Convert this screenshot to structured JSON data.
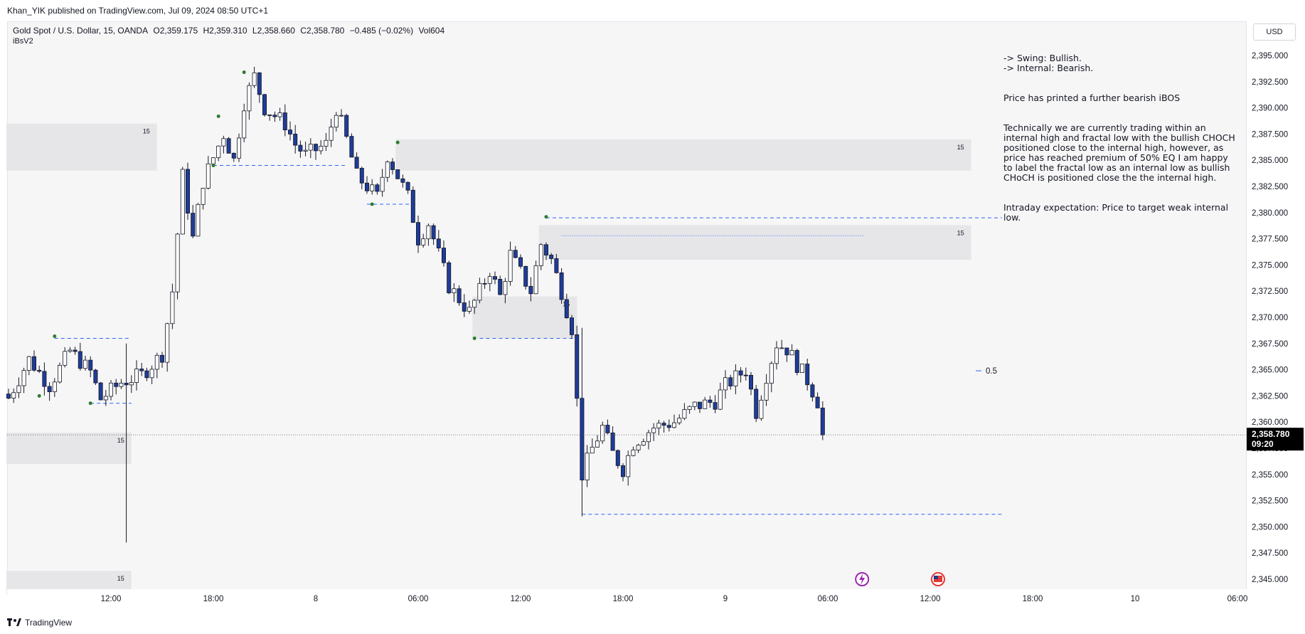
{
  "header": {
    "published": "Khan_YIK published on TradingView.com, Jul 09, 2024 08:50 UTC+1",
    "symbol": "Gold Spot / U.S. Dollar, 15, OANDA",
    "open": "O2,359.175",
    "high": "H2,359.310",
    "low": "L2,358.660",
    "close": "C2,358.780",
    "change": "−0.485 (−0.02%)",
    "volume": "Vol604",
    "indicator": "iBsV2"
  },
  "currency": "USD",
  "footer": {
    "brand": "TradingView"
  },
  "note": [
    "-> Swing: Bullish.\n-> Internal: Bearish.",
    "Price has printed a further bearish iBOS",
    "Technically we are currently trading within an internal high and fractal low with the bullish CHOCH positioned close to the internal high, however, as price has reached premium of 50% EQ I am happy to label the fractal low as an internal low as bullish CHoCH is positioned close the the internal high.",
    "Intraday expectation:  Price to target weak internal low."
  ],
  "colors": {
    "bearish": "#1f3c99",
    "bullish": "#ffffff",
    "wick": "#131722",
    "zone": "#e6e6e9",
    "dashed": "#2962ff",
    "dot": "#2e7d32",
    "tag": "#000000"
  },
  "chart_data": {
    "type": "candlestick",
    "symbol": "XAUUSD",
    "timeframe": "15",
    "ylim": [
      2343.5,
      2397.5
    ],
    "y_ticks": [
      "2,345.000",
      "2,347.500",
      "2,350.000",
      "2,352.500",
      "2,355.000",
      "2,357.500",
      "2,360.000",
      "2,362.500",
      "2,365.000",
      "2,367.500",
      "2,370.000",
      "2,372.500",
      "2,375.000",
      "2,377.500",
      "2,380.000",
      "2,382.500",
      "2,385.000",
      "2,387.500",
      "2,390.000",
      "2,392.500",
      "2,395.000"
    ],
    "y_tick_values": [
      2345,
      2347.5,
      2350,
      2352.5,
      2355,
      2357.5,
      2360,
      2362.5,
      2365,
      2367.5,
      2370,
      2372.5,
      2375,
      2377.5,
      2380,
      2382.5,
      2385,
      2387.5,
      2390,
      2392.5,
      2395
    ],
    "x_ticks": [
      "12:00",
      "18:00",
      "8",
      "06:00",
      "12:00",
      "18:00",
      "9",
      "06:00",
      "12:00",
      "18:00",
      "10",
      "06:00"
    ],
    "x_tick_index": [
      20,
      40,
      60,
      80,
      100,
      120,
      140,
      160,
      180,
      200,
      220,
      240
    ],
    "last_price": {
      "price": 2358.78,
      "label": "2,358.780",
      "countdown": "09:20"
    },
    "eq_label": {
      "text": "0.5",
      "price": 2364.9
    },
    "close_path": [
      [
        0,
        2362.3
      ],
      [
        4,
        2366.0
      ],
      [
        8,
        2363.5
      ],
      [
        12,
        2366.8
      ],
      [
        16,
        2364.8
      ],
      [
        18,
        2362.2
      ],
      [
        22,
        2363.8
      ],
      [
        26,
        2364.5
      ],
      [
        30,
        2366.5
      ],
      [
        32,
        2372.5
      ],
      [
        34,
        2383.5
      ],
      [
        36,
        2377.5
      ],
      [
        38,
        2383.0
      ],
      [
        42,
        2387.5
      ],
      [
        44,
        2385.0
      ],
      [
        46,
        2390.5
      ],
      [
        48,
        2393.0
      ],
      [
        50,
        2390.0
      ],
      [
        54,
        2388.5
      ],
      [
        56,
        2386.5
      ],
      [
        58,
        2385.5
      ],
      [
        62,
        2386.5
      ],
      [
        64,
        2390.0
      ],
      [
        66,
        2387.0
      ],
      [
        68,
        2383.5
      ],
      [
        72,
        2381.5
      ],
      [
        74,
        2385.5
      ],
      [
        78,
        2381.5
      ],
      [
        80,
        2377.5
      ],
      [
        82,
        2379.0
      ],
      [
        84,
        2376.0
      ],
      [
        86,
        2373.0
      ],
      [
        90,
        2370.5
      ],
      [
        94,
        2374.5
      ],
      [
        96,
        2372.0
      ],
      [
        98,
        2376.0
      ],
      [
        102,
        2372.5
      ],
      [
        104,
        2377.0
      ],
      [
        106,
        2375.5
      ],
      [
        108,
        2372.5
      ],
      [
        110,
        2369.0
      ],
      [
        112,
        2355.0
      ],
      [
        114,
        2357.5
      ],
      [
        116,
        2359.5
      ],
      [
        118,
        2357.0
      ],
      [
        120,
        2355.5
      ],
      [
        122,
        2358.0
      ],
      [
        126,
        2359.5
      ],
      [
        130,
        2360.0
      ],
      [
        134,
        2361.5
      ],
      [
        138,
        2362.0
      ],
      [
        140,
        2363.5
      ],
      [
        144,
        2365.0
      ],
      [
        146,
        2361.0
      ],
      [
        148,
        2364.5
      ],
      [
        150,
        2367.5
      ],
      [
        152,
        2367.0
      ],
      [
        154,
        2365.5
      ],
      [
        156,
        2364.0
      ],
      [
        158,
        2362.0
      ],
      [
        159,
        2358.8
      ]
    ],
    "zones": [
      {
        "name": "zone-1",
        "i0": 0,
        "i1": 29,
        "top": 2388.5,
        "bottom": 2384.0,
        "label": "15"
      },
      {
        "name": "zone-2",
        "i0": 76,
        "i1": 188,
        "top": 2387.0,
        "bottom": 2384.0,
        "label": "15"
      },
      {
        "name": "zone-3",
        "i0": 104,
        "i1": 188,
        "top": 2378.8,
        "bottom": 2375.5,
        "label": "15"
      },
      {
        "name": "zone-4",
        "i0": 91,
        "i1": 111,
        "top": 2372.0,
        "bottom": 2368.0,
        "label": "15"
      },
      {
        "name": "zone-5",
        "i0": 0,
        "i1": 24,
        "top": 2359.0,
        "bottom": 2356.0,
        "label": "15"
      },
      {
        "name": "zone-6",
        "i0": 0,
        "i1": 24,
        "top": 2345.8,
        "bottom": 2343.5,
        "label": "15"
      }
    ],
    "levels": [
      {
        "name": "swing-high-line",
        "i0": 105,
        "i1": 194,
        "price": 2379.5
      },
      {
        "name": "weak-low-line",
        "i0": 112,
        "i1": 194,
        "price": 2351.2
      },
      {
        "name": "internal-low-line",
        "i0": 92,
        "i1": 111,
        "price": 2368.0
      },
      {
        "name": "range-low-line",
        "i0": 40,
        "i1": 66,
        "price": 2384.5
      },
      {
        "name": "mid-low-line",
        "i0": 70,
        "i1": 80,
        "price": 2380.8
      },
      {
        "name": "early-high-line",
        "i0": 9,
        "i1": 24,
        "price": 2368.0
      },
      {
        "name": "early-low-line",
        "i0": 16,
        "i1": 24,
        "price": 2361.8
      }
    ],
    "pivots": [
      {
        "i": 6,
        "price": 2362.5
      },
      {
        "i": 9,
        "price": 2368.2
      },
      {
        "i": 16,
        "price": 2361.8
      },
      {
        "i": 40,
        "price": 2384.5
      },
      {
        "i": 41,
        "price": 2389.2
      },
      {
        "i": 46,
        "price": 2393.4
      },
      {
        "i": 71,
        "price": 2380.8
      },
      {
        "i": 76,
        "price": 2386.7
      },
      {
        "i": 91,
        "price": 2368.0
      },
      {
        "i": 105,
        "price": 2379.6
      }
    ],
    "spikes": [
      {
        "i": 23,
        "high": 2367.5,
        "low": 2348.5
      },
      {
        "i": 112,
        "high": 2369.0,
        "low": 2351.0
      }
    ]
  }
}
